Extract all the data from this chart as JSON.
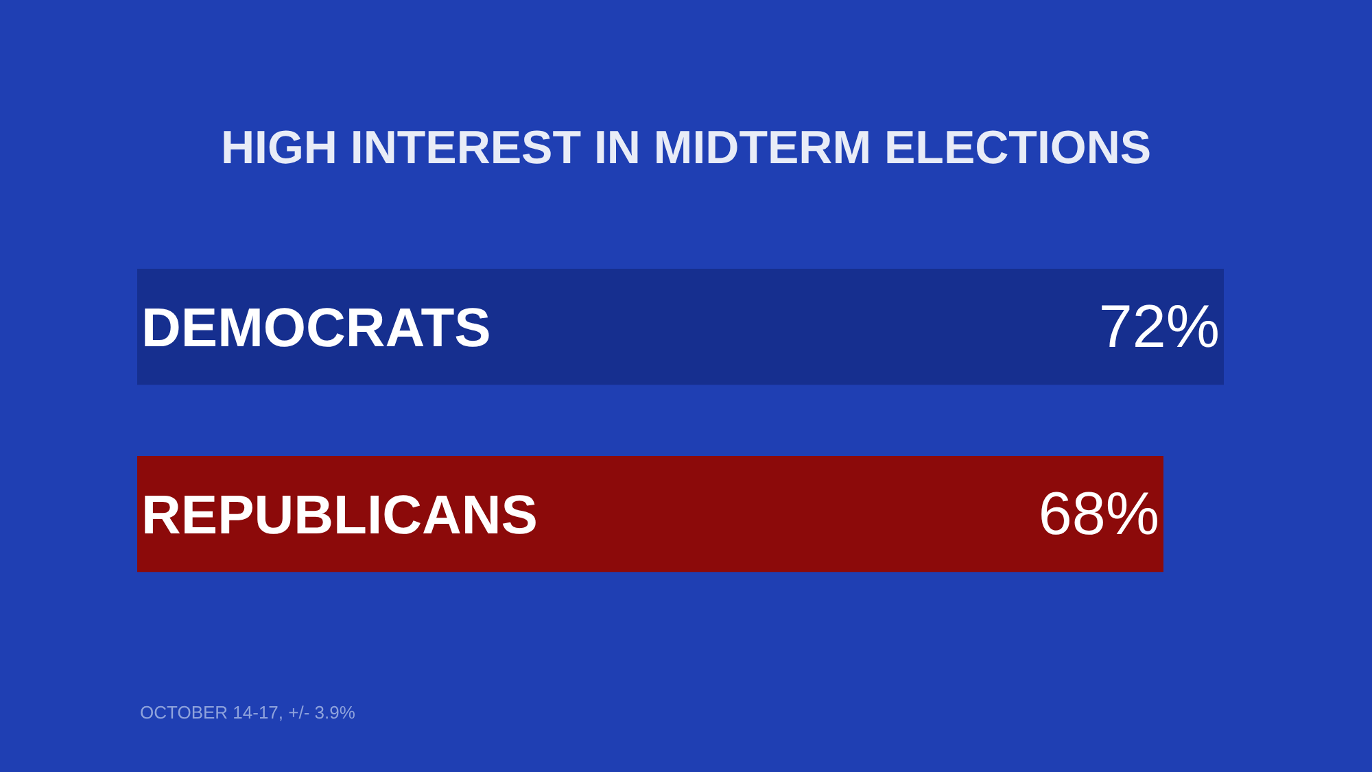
{
  "chart_data": {
    "type": "bar",
    "orientation": "horizontal",
    "title": "HIGH INTEREST IN MIDTERM ELECTIONS",
    "categories": [
      "DEMOCRATS",
      "REPUBLICANS"
    ],
    "values": [
      72,
      68
    ],
    "colors": [
      "#162f8f",
      "#8c0a0a"
    ],
    "value_labels": [
      "72%",
      "68%"
    ],
    "annotations": [
      "OCTOBER 14-17, +/- 3.9%"
    ],
    "grid": false,
    "legend": false
  }
}
